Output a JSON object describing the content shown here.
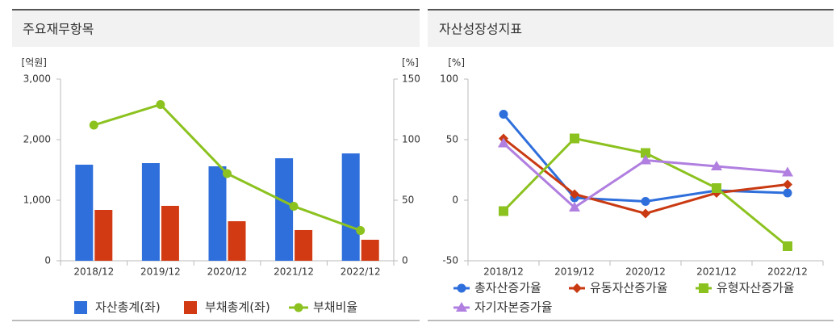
{
  "chart_data": [
    {
      "type": "bar",
      "title": "주요재무항목",
      "ylabel": "[억원]",
      "y2label": "[%]",
      "categories": [
        "2018/12",
        "2019/12",
        "2020/12",
        "2021/12",
        "2022/12"
      ],
      "ylim": [
        0,
        3000
      ],
      "yticks": [
        0,
        {
          "value": 1000,
          "label": "1,000"
        },
        {
          "value": 2000,
          "label": "2,000"
        },
        {
          "value": 3000,
          "label": "3,000"
        }
      ],
      "y2lim": [
        0,
        150
      ],
      "y2ticks": [
        0,
        50,
        100,
        150
      ],
      "series": [
        {
          "name": "자산총계(좌)",
          "type": "bar",
          "color": "#2f6fdc",
          "values": [
            1587,
            1613,
            1560,
            1693,
            1773
          ]
        },
        {
          "name": "부채총계(좌)",
          "type": "bar",
          "color": "#d13a12",
          "values": [
            840,
            907,
            653,
            507,
            347
          ]
        },
        {
          "name": "부채비율",
          "type": "line",
          "axis": "y2",
          "marker": "circle",
          "color": "#8cc21f",
          "values": [
            112,
            129,
            72,
            45,
            25
          ]
        }
      ]
    },
    {
      "type": "line",
      "title": "자산성장성지표",
      "ylabel": "[%]",
      "categories": [
        "2018/12",
        "2019/12",
        "2020/12",
        "2021/12",
        "2022/12"
      ],
      "ylim": [
        -50,
        100
      ],
      "yticks": [
        -50,
        0,
        50,
        100
      ],
      "series": [
        {
          "name": "총자산증가율",
          "marker": "circle",
          "color": "#2f6fdc",
          "values": [
            71,
            2,
            -1,
            8,
            6
          ]
        },
        {
          "name": "유동자산증가율",
          "marker": "diamond",
          "color": "#c93a12",
          "values": [
            51,
            5,
            -11,
            6,
            13
          ]
        },
        {
          "name": "유형자산증가율",
          "marker": "square",
          "color": "#8cc21f",
          "values": [
            -9,
            51,
            39,
            10,
            -38
          ]
        },
        {
          "name": "자기자본증가율",
          "marker": "triangle",
          "color": "#b07fe0",
          "values": [
            47,
            -6,
            33,
            28,
            23
          ]
        }
      ]
    }
  ]
}
